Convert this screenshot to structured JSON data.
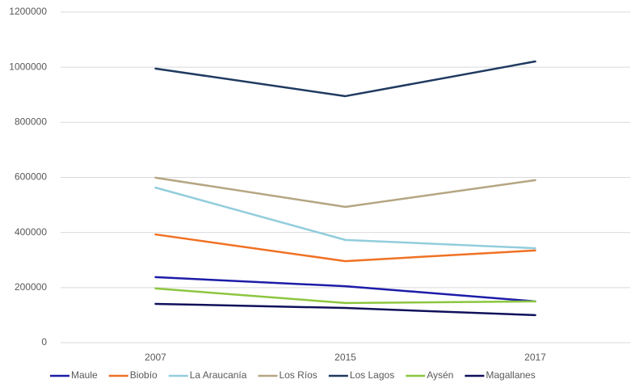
{
  "chart_data": {
    "type": "line",
    "categories": [
      "2007",
      "2015",
      "2017"
    ],
    "series": [
      {
        "name": "Maule",
        "color": "#1c1ca8",
        "values": [
          238000,
          205000,
          150000
        ]
      },
      {
        "name": "Biobío",
        "color": "#f07124",
        "values": [
          393000,
          296000,
          335000
        ]
      },
      {
        "name": "La Araucanía",
        "color": "#92cddc",
        "values": [
          563000,
          373000,
          343000
        ]
      },
      {
        "name": "Los Ríos",
        "color": "#b5a582",
        "values": [
          599000,
          493000,
          590000
        ]
      },
      {
        "name": "Los Lagos",
        "color": "#203a60",
        "values": [
          995000,
          895000,
          1021000
        ]
      },
      {
        "name": "Aysén",
        "color": "#8cc63f",
        "values": [
          197000,
          144000,
          150000
        ]
      },
      {
        "name": "Magallanes",
        "color": "#10105a",
        "values": [
          141000,
          126000,
          100000
        ]
      }
    ],
    "ylim": [
      0,
      1200000
    ],
    "yticks": [
      0,
      200000,
      400000,
      600000,
      800000,
      1000000,
      1200000
    ],
    "grid": true,
    "legend": "bottom"
  }
}
